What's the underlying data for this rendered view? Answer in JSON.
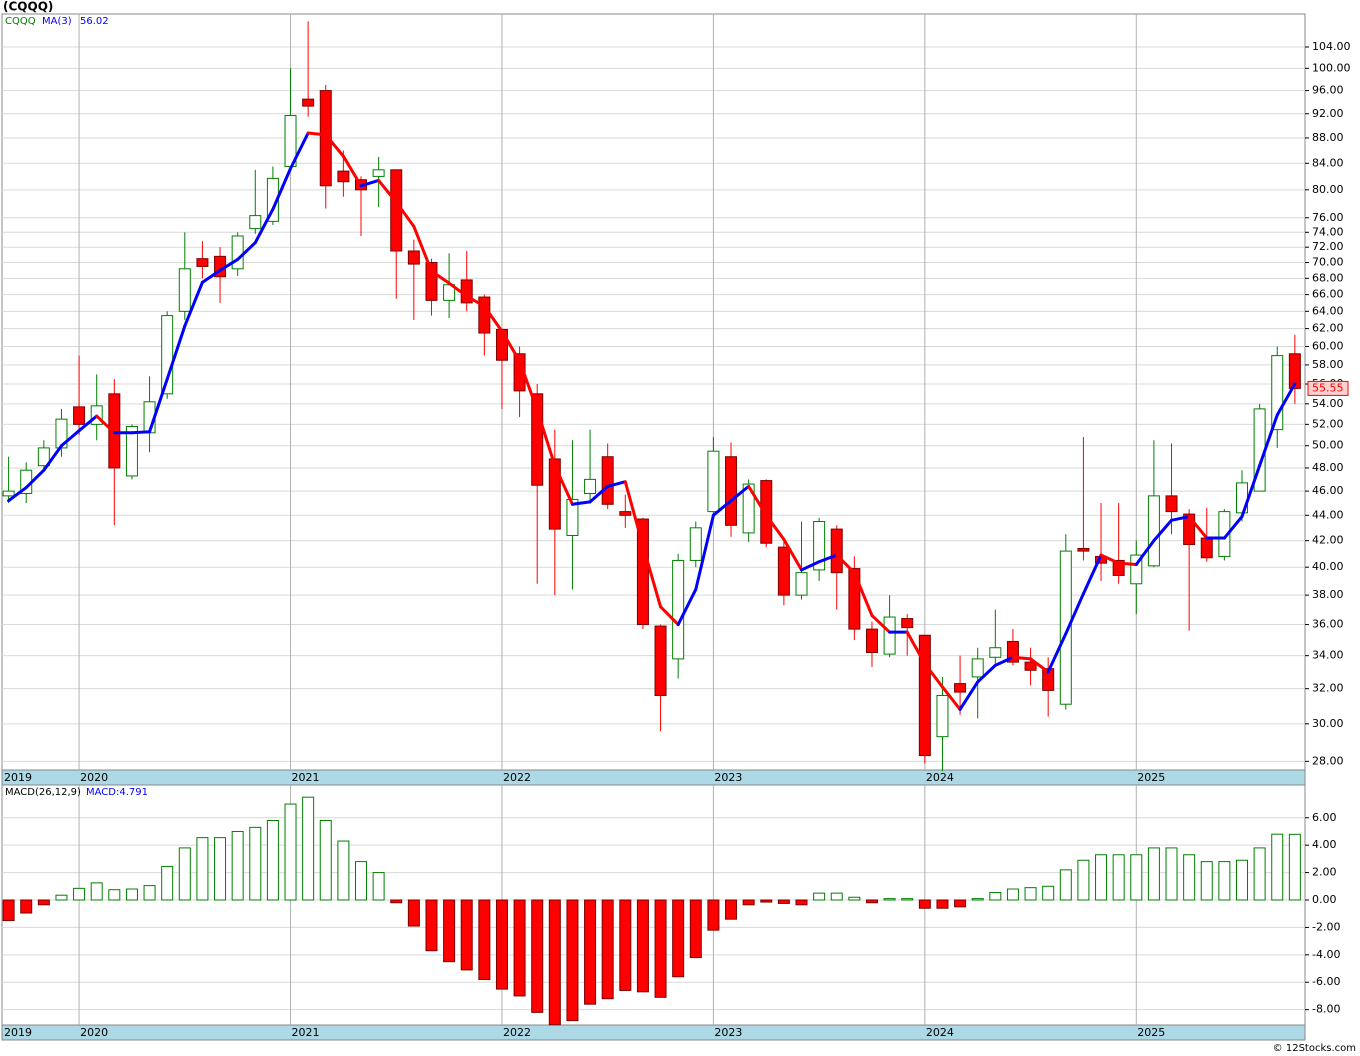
{
  "chart_data": [
    {
      "type": "candlestick",
      "title": "(CQQQ)",
      "symbol": "CQQQ",
      "log_scale": true,
      "grid": true,
      "up_color": "#008000",
      "down_color": "#ff0000",
      "categories": [
        "2019",
        null,
        null,
        null,
        "2020",
        null,
        null,
        null,
        null,
        null,
        null,
        null,
        null,
        null,
        null,
        null,
        "2021",
        null,
        null,
        null,
        null,
        null,
        null,
        null,
        null,
        null,
        null,
        null,
        "2022",
        null,
        null,
        null,
        null,
        null,
        null,
        null,
        null,
        null,
        null,
        null,
        "2023",
        null,
        null,
        null,
        null,
        null,
        null,
        null,
        null,
        null,
        null,
        null,
        "2024",
        null,
        null,
        null,
        null,
        null,
        null,
        null,
        null,
        null,
        null,
        null,
        "2025",
        null,
        null,
        null,
        null,
        null,
        null,
        null,
        null,
        null
      ],
      "open": [
        45.6,
        45.8,
        48.2,
        49.8,
        53.7,
        52,
        55,
        47.3,
        51.2,
        55,
        64,
        70.5,
        70.8,
        69.2,
        74.5,
        75.5,
        83.5,
        94.5,
        96,
        82.8,
        81.5,
        82,
        83,
        71.5,
        70,
        65.3,
        67.8,
        65.7,
        61.9,
        59.2,
        55,
        48.8,
        42.4,
        45.8,
        49,
        44.3,
        43.7,
        35.9,
        33.8,
        40.5,
        44.3,
        49,
        42.6,
        46.9,
        41.5,
        38,
        39.8,
        42.9,
        39.9,
        35.7,
        34.1,
        36.4,
        35.3,
        29.3,
        32.3,
        32.7,
        33.9,
        34.9,
        33.6,
        33.2,
        31.1,
        41.4,
        40.8,
        40.5,
        38.8,
        40.1,
        45.6,
        44.1,
        42.2,
        40.8,
        44.2,
        46,
        51.5,
        59.2
      ],
      "high": [
        49,
        48.5,
        50.5,
        53.5,
        59,
        57,
        56.5,
        52,
        56.8,
        64,
        74,
        72.8,
        72,
        74,
        83,
        83.5,
        100,
        109,
        97,
        86,
        82,
        85,
        83,
        73,
        70.5,
        71.2,
        71.5,
        66,
        62,
        60,
        56,
        51.5,
        50.5,
        51.5,
        50.2,
        45.7,
        43.8,
        36,
        41,
        43.5,
        50.8,
        50.3,
        47,
        47,
        42,
        43.5,
        43.8,
        43.2,
        40.8,
        36.2,
        38,
        36.7,
        35.3,
        32.7,
        34,
        34.5,
        37,
        35.7,
        34.5,
        33.9,
        42.5,
        50.8,
        45,
        45,
        42,
        50.5,
        50.2,
        44.5,
        44.6,
        44.5,
        47.8,
        54,
        60,
        61.3
      ],
      "low": [
        45,
        45,
        47.8,
        49,
        51,
        50.5,
        43.2,
        47,
        49.4,
        54.5,
        63,
        68,
        65,
        68.3,
        73.8,
        75,
        83,
        91.5,
        77.3,
        79,
        73.5,
        77.5,
        65.5,
        63,
        63.5,
        63.2,
        64,
        59,
        53.5,
        52.7,
        38.8,
        38,
        38.4,
        45,
        44.5,
        43,
        35.7,
        29.6,
        32.6,
        40,
        44,
        42.3,
        41.9,
        41.5,
        37.3,
        37.7,
        39,
        37,
        35,
        33.3,
        33.9,
        34,
        27.9,
        27.5,
        30.5,
        30.3,
        33.5,
        33.4,
        32.2,
        30.4,
        30.8,
        40.5,
        39,
        38.8,
        36.7,
        40,
        42.5,
        35.6,
        40.4,
        40.5,
        43.5,
        46,
        49.8,
        54
      ],
      "close": [
        46,
        47.8,
        49.8,
        52.5,
        52,
        53.8,
        48,
        51.8,
        54.2,
        63.5,
        69.2,
        69.5,
        68.2,
        73.5,
        76.3,
        81.7,
        91.7,
        93.3,
        80.6,
        81.2,
        80,
        83,
        71.5,
        69.8,
        65.3,
        67.2,
        65,
        61.5,
        58.5,
        55.3,
        46.5,
        42.9,
        45.3,
        47,
        44.9,
        44,
        36,
        31.6,
        40.5,
        43,
        49.5,
        43.2,
        46.6,
        41.8,
        38,
        39.6,
        43.5,
        39.6,
        35.7,
        34.2,
        36.5,
        35.8,
        28.3,
        31.6,
        31.8,
        33.8,
        34.5,
        33.6,
        33.1,
        31.9,
        41.2,
        41.2,
        40.3,
        39.4,
        40.9,
        45.6,
        44.3,
        41.7,
        40.7,
        44.3,
        46.7,
        53.5,
        59,
        55.55
      ],
      "series": [
        {
          "name": "MA(3)",
          "color": "#0000ff",
          "down_color": "#ff0000",
          "values": [
            45.2,
            46.3,
            47.8,
            50.0,
            51.4,
            52.8,
            51.2,
            51.2,
            51.3,
            56.5,
            62.3,
            67.5,
            69.0,
            70.4,
            72.6,
            77.2,
            83.2,
            88.8,
            88.5,
            85.1,
            80.6,
            81.4,
            78.2,
            74.8,
            68.9,
            67.4,
            65.8,
            64.6,
            61.7,
            58.4,
            53.4,
            48.2,
            44.9,
            45.1,
            46.4,
            46.8,
            41.6,
            37.2,
            36.0,
            38.4,
            44.0,
            45.2,
            46.4,
            44.0,
            42.1,
            39.8,
            40.4,
            40.9,
            39.6,
            36.6,
            35.5,
            35.5,
            33.5,
            32.1,
            30.8,
            32.4,
            33.4,
            33.9,
            33.8,
            33.0,
            35.4,
            38.1,
            40.9,
            40.3,
            40.2,
            42.0,
            43.6,
            43.9,
            42.2,
            42.2,
            43.9,
            48.2,
            52.9,
            56.02
          ]
        }
      ],
      "ylim": [
        27.56,
        110.5
      ],
      "yticks": [
        {
          "value": 28,
          "label": "28.00"
        },
        {
          "value": 30,
          "label": "30.00"
        },
        {
          "value": 32,
          "label": "32.00"
        },
        {
          "value": 34,
          "label": "34.00"
        },
        {
          "value": 36,
          "label": "36.00"
        },
        {
          "value": 38,
          "label": "38.00"
        },
        {
          "value": 40,
          "label": "40.00"
        },
        {
          "value": 42,
          "label": "42.00"
        },
        {
          "value": 44,
          "label": "44.00"
        },
        {
          "value": 46,
          "label": "46.00"
        },
        {
          "value": 48,
          "label": "48.00"
        },
        {
          "value": 50,
          "label": "50.00"
        },
        {
          "value": 52,
          "label": "52.00"
        },
        {
          "value": 54,
          "label": "54.00"
        },
        {
          "value": 56,
          "label": "56.00"
        },
        {
          "value": 58,
          "label": "58.00"
        },
        {
          "value": 60,
          "label": "60.00"
        },
        {
          "value": 62,
          "label": "62.00"
        },
        {
          "value": 64,
          "label": "64.00"
        },
        {
          "value": 66,
          "label": "66.00"
        },
        {
          "value": 68,
          "label": "68.00"
        },
        {
          "value": 70,
          "label": "70.00"
        },
        {
          "value": 72,
          "label": "72.00"
        },
        {
          "value": 74,
          "label": "74.00"
        },
        {
          "value": 76,
          "label": "76.00"
        },
        {
          "value": 80,
          "label": "80.00"
        },
        {
          "value": 84,
          "label": "84.00"
        },
        {
          "value": 88,
          "label": "88.00"
        },
        {
          "value": 92,
          "label": "92.00"
        },
        {
          "value": 96,
          "label": "96.00"
        },
        {
          "value": 100,
          "label": "100.00"
        },
        {
          "value": 104,
          "label": "104.00"
        }
      ]
    },
    {
      "type": "bar",
      "series": [
        {
          "name": "MACD(26,12,9)",
          "color": "#008000",
          "down_color": "#ff0000",
          "values": [
            -1.5,
            -0.95,
            -0.35,
            0.35,
            0.85,
            1.25,
            0.75,
            0.8,
            1.05,
            2.45,
            3.8,
            4.55,
            4.55,
            5.0,
            5.3,
            5.8,
            7.0,
            7.5,
            5.8,
            4.3,
            2.8,
            2.0,
            -0.2,
            -1.9,
            -3.7,
            -4.5,
            -5.1,
            -5.8,
            -6.5,
            -7.0,
            -8.2,
            -9.1,
            -8.8,
            -7.6,
            -7.2,
            -6.6,
            -6.7,
            -7.1,
            -5.6,
            -4.2,
            -2.2,
            -1.4,
            -0.35,
            -0.15,
            -0.25,
            -0.35,
            0.5,
            0.5,
            0.2,
            -0.2,
            0.1,
            0.1,
            -0.6,
            -0.6,
            -0.5,
            0.1,
            0.55,
            0.8,
            0.9,
            1.0,
            2.2,
            2.9,
            3.3,
            3.3,
            3.3,
            3.8,
            3.8,
            3.3,
            2.8,
            2.8,
            2.9,
            3.8,
            4.8,
            4.791
          ]
        }
      ],
      "current_label": "MACD:4.791",
      "grid": true,
      "ylim": [
        -9.12,
        8.39
      ],
      "yticks": [
        {
          "value": -8,
          "label": "-8.00"
        },
        {
          "value": -6,
          "label": "-6.00"
        },
        {
          "value": -4,
          "label": "-4.00"
        },
        {
          "value": -2,
          "label": "-2.00"
        },
        {
          "value": 0,
          "label": "0.00"
        },
        {
          "value": 2,
          "label": "2.00"
        },
        {
          "value": 4,
          "label": "4.00"
        },
        {
          "value": 6,
          "label": "6.00"
        }
      ],
      "footer": "© 12Stocks.com"
    }
  ]
}
